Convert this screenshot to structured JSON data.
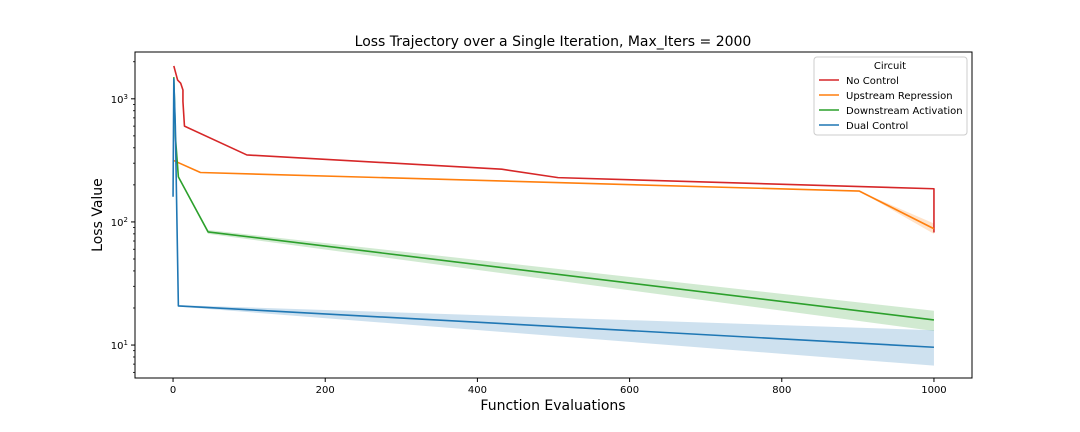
{
  "chart_data": {
    "type": "line",
    "title": "Loss Trajectory over a Single Iteration, Max_Iters = 2000",
    "xlabel": "Function Evaluations",
    "ylabel": "Loss Value",
    "xscale": "linear",
    "yscale": "log",
    "xlim": [
      -50,
      1050
    ],
    "ylim": [
      5.4,
      2400
    ],
    "x_ticks": [
      0,
      200,
      400,
      600,
      800,
      1000
    ],
    "x_tick_labels": [
      "0",
      "200",
      "400",
      "600",
      "800",
      "1000"
    ],
    "y_ticks": [
      10,
      100,
      1000
    ],
    "y_tick_labels": [
      "10^1",
      "10^2",
      "10^3"
    ],
    "grid": false,
    "legend": {
      "title": "Circuit",
      "position": "top-right"
    },
    "series": [
      {
        "name": "No Control",
        "color": "#d62728",
        "x": [
          1,
          6,
          10,
          13,
          13,
          15,
          97,
          432,
          506,
          1000,
          1000
        ],
        "y": [
          1850,
          1420,
          1340,
          1180,
          950,
          600,
          350,
          268,
          229,
          186,
          82
        ],
        "band_lower": [
          1850,
          1420,
          1340,
          1180,
          950,
          600,
          350,
          268,
          229,
          186,
          78
        ],
        "band_upper": [
          1850,
          1420,
          1340,
          1180,
          950,
          600,
          350,
          268,
          229,
          186,
          86
        ]
      },
      {
        "name": "Upstream Repression",
        "color": "#ff7f0e",
        "x": [
          1,
          6,
          36,
          902,
          1000
        ],
        "y": [
          315,
          305,
          252,
          178,
          88
        ],
        "band_lower": [
          315,
          305,
          252,
          178,
          80
        ],
        "band_upper": [
          315,
          305,
          252,
          178,
          97
        ]
      },
      {
        "name": "Downstream Activation",
        "color": "#2ca02c",
        "x": [
          1,
          3,
          7,
          46,
          1000
        ],
        "y": [
          1500,
          500,
          232,
          83,
          16
        ],
        "band_lower": [
          1500,
          490,
          228,
          80,
          13
        ],
        "band_upper": [
          1500,
          510,
          236,
          86,
          19
        ]
      },
      {
        "name": "Dual Control",
        "color": "#1f77b4",
        "x": [
          0,
          1,
          3,
          7,
          1000
        ],
        "y": [
          160,
          1450,
          600,
          20.8,
          9.6
        ],
        "band_lower": [
          160,
          1450,
          600,
          20.5,
          6.8
        ],
        "band_upper": [
          160,
          1450,
          600,
          21.1,
          13.2
        ]
      }
    ]
  }
}
